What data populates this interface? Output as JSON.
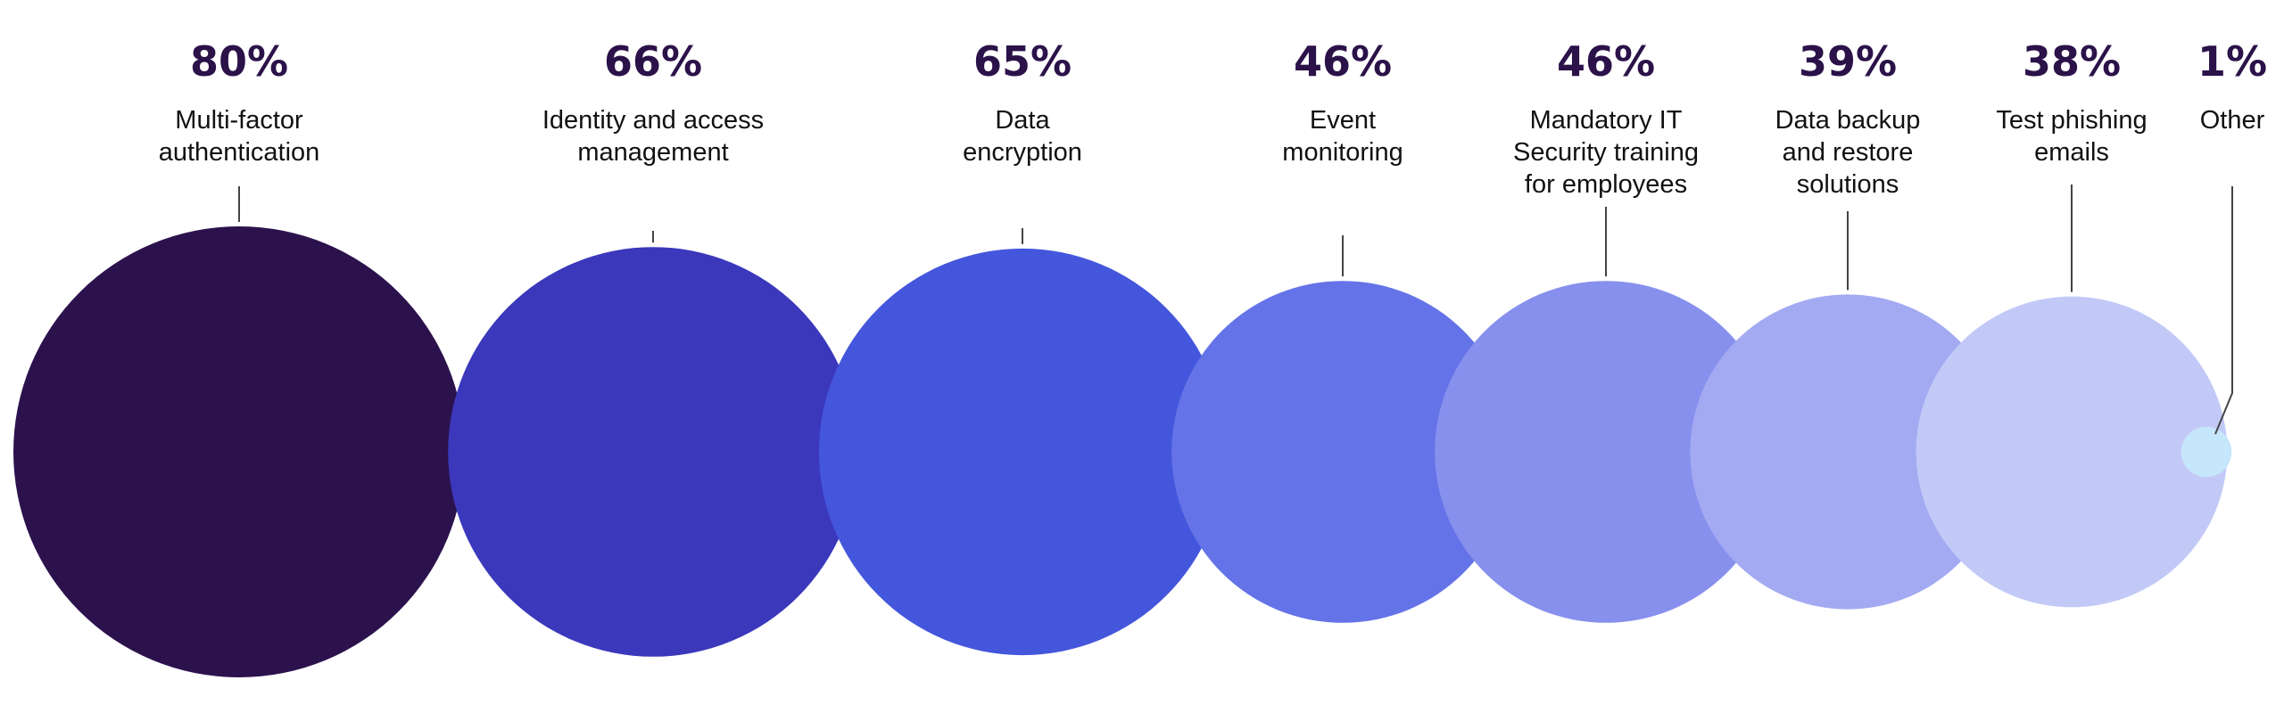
{
  "chart_data": {
    "type": "bubble",
    "unit": "%",
    "items": [
      {
        "value": 80,
        "value_label": "80%",
        "label_lines": [
          "Multi-factor",
          "authentication"
        ],
        "color": "#2c124d"
      },
      {
        "value": 66,
        "value_label": "66%",
        "label_lines": [
          "Identity and access",
          "management"
        ],
        "color": "#3b38bc"
      },
      {
        "value": 65,
        "value_label": "65%",
        "label_lines": [
          "Data",
          "encryption"
        ],
        "color": "#4456dc"
      },
      {
        "value": 46,
        "value_label": "46%",
        "label_lines": [
          "Event",
          "monitoring"
        ],
        "color": "#6573e9"
      },
      {
        "value": 46,
        "value_label": "46%",
        "label_lines": [
          "Mandatory IT",
          "Security training",
          "for employees"
        ],
        "color": "#8790ed"
      },
      {
        "value": 39,
        "value_label": "39%",
        "label_lines": [
          "Data backup",
          "and restore",
          "solutions"
        ],
        "color": "#a3aaf2"
      },
      {
        "value": 38,
        "value_label": "38%",
        "label_lines": [
          "Test phishing",
          "emails"
        ],
        "color": "#c3c9f7"
      },
      {
        "value": 1,
        "value_label": "1%",
        "label_lines": [
          "Other"
        ],
        "color": "#c6e6fb"
      }
    ]
  }
}
